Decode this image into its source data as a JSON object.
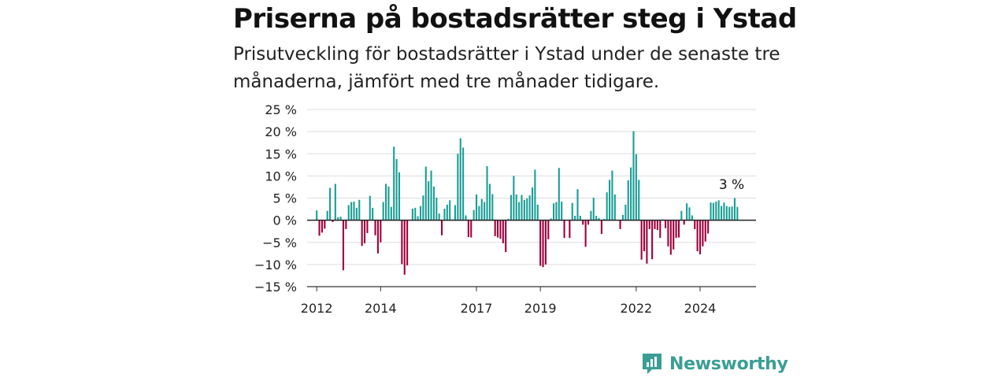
{
  "title": "Priserna på bostadsrätter steg i Ystad",
  "subtitle": "Prisutveckling för bostadsrätter i Ystad under de senaste tre månaderna, jämfört med tre månader tidigare.",
  "brand": "Newsworthy",
  "colors": {
    "positive": "#1a9e96",
    "negative": "#a0003c",
    "grid": "#dddddd",
    "axis": "#333333"
  },
  "chart_data": {
    "type": "bar",
    "ylim": [
      -15,
      25
    ],
    "yticks": [
      -15,
      -10,
      -5,
      0,
      5,
      10,
      15,
      20,
      25
    ],
    "ytick_labels": [
      "−15 %",
      "−10 %",
      "−5 %",
      "0 %",
      "5 %",
      "10 %",
      "15 %",
      "20 %",
      "25 %"
    ],
    "xlim": [
      2011.7,
      2025.75
    ],
    "xticks": [
      2012,
      2014,
      2017,
      2019,
      2022,
      2024
    ],
    "xtick_labels": [
      "2012",
      "2014",
      "2017",
      "2019",
      "2022",
      "2024"
    ],
    "grid": true,
    "annotation": {
      "text": "3 %",
      "x": 2025.08,
      "y": 3
    },
    "start": "2012-01",
    "frequency": "monthly",
    "values": [
      2.2,
      -3.5,
      -2.8,
      -1.9,
      2.1,
      7.3,
      -0.4,
      8.2,
      0.7,
      0.8,
      -11.3,
      -2.0,
      3.4,
      4.1,
      4.2,
      2.8,
      4.6,
      -5.8,
      -5.2,
      -2.9,
      5.5,
      2.8,
      -3.4,
      -7.5,
      -5.0,
      4.1,
      8.2,
      7.6,
      3.0,
      16.6,
      13.8,
      10.8,
      -9.9,
      -12.3,
      -10.2,
      0.1,
      2.6,
      2.8,
      0.9,
      3.2,
      5.6,
      12.1,
      8.8,
      11.2,
      7.6,
      5.1,
      1.5,
      -3.4,
      2.6,
      3.5,
      4.5,
      0.2,
      3.4,
      15.0,
      18.5,
      16.4,
      1.1,
      -3.8,
      -3.9,
      2.3,
      5.8,
      3.2,
      4.8,
      4.1,
      12.2,
      8.2,
      5.9,
      -3.6,
      -3.9,
      -4.2,
      -5.2,
      -7.2,
      0.3,
      5.7,
      10.0,
      5.8,
      4.1,
      5.7,
      4.6,
      4.9,
      5.6,
      7.4,
      11.4,
      3.5,
      -10.3,
      -10.6,
      -10.0,
      -4.3,
      0.4,
      3.8,
      4.1,
      11.8,
      4.2,
      -4.0,
      0.1,
      -4.0,
      3.9,
      1.0,
      7.0,
      1.0,
      -1.0,
      -6.0,
      -1.0,
      2.1,
      5.1,
      1.0,
      0.5,
      -3.1,
      0.3,
      6.3,
      9.1,
      11.2,
      5.8,
      0.1,
      -2.0,
      1.2,
      3.5,
      9.0,
      11.9,
      20.1,
      14.9,
      9.1,
      -8.9,
      -7.0,
      -9.8,
      -2.0,
      -8.8,
      -2.0,
      -2.2,
      -4.0,
      0.2,
      -1.8,
      -5.9,
      -7.8,
      -6.6,
      -4.0,
      -3.9,
      2.1,
      -1.0,
      3.8,
      2.9,
      1.1,
      -2.0,
      -7.0,
      -7.7,
      -5.9,
      -4.8,
      -3.0,
      4.0,
      3.9,
      4.2,
      4.5,
      3.2,
      4.0,
      3.2,
      3.0,
      3.1,
      5.0,
      3.0
    ]
  }
}
